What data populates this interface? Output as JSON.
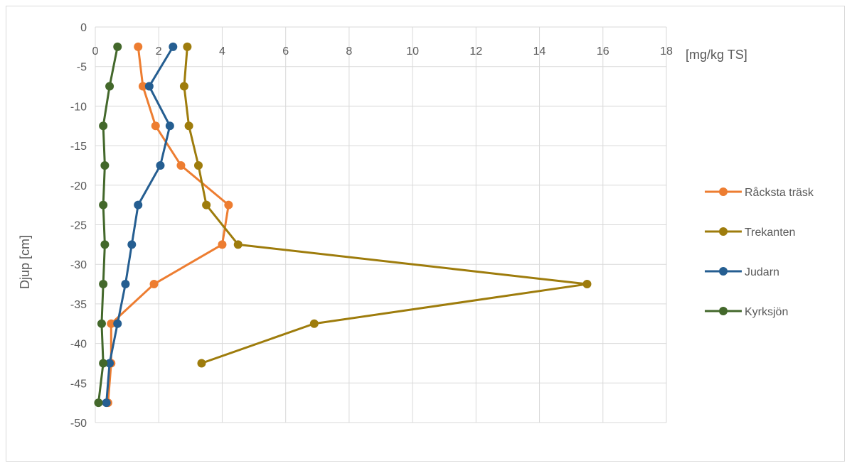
{
  "chart_data": {
    "type": "line",
    "title": "",
    "xlabel": "[mg/kg TS]",
    "ylabel": "Djup [cm]",
    "xlim": [
      0,
      18
    ],
    "ylim": [
      -50,
      0
    ],
    "x_ticks": [
      0,
      2,
      4,
      6,
      8,
      10,
      12,
      14,
      16,
      18
    ],
    "y_ticks": [
      0,
      -5,
      -10,
      -15,
      -20,
      -25,
      -30,
      -35,
      -40,
      -45,
      -50
    ],
    "grid": true,
    "x_axis_position": "top",
    "legend_position": "right",
    "depths": [
      -2.5,
      -7.5,
      -12.5,
      -17.5,
      -22.5,
      -27.5,
      -32.5,
      -37.5,
      -42.5,
      -47.5
    ],
    "series": [
      {
        "name": "Råcksta träsk",
        "color": "#ED7D31",
        "points": [
          [
            1.35,
            -2.5
          ],
          [
            1.5,
            -7.5
          ],
          [
            1.9,
            -12.5
          ],
          [
            2.7,
            -17.5
          ],
          [
            4.2,
            -22.5
          ],
          [
            4.0,
            -27.5
          ],
          [
            1.85,
            -32.5
          ],
          [
            0.5,
            -37.5
          ],
          [
            0.5,
            -42.5
          ],
          [
            0.4,
            -47.5
          ]
        ]
      },
      {
        "name": "Trekanten",
        "color": "#9E7C0C",
        "points": [
          [
            2.9,
            -2.5
          ],
          [
            2.8,
            -7.5
          ],
          [
            2.95,
            -12.5
          ],
          [
            3.25,
            -17.5
          ],
          [
            3.5,
            -22.5
          ],
          [
            4.5,
            -27.5
          ],
          [
            15.5,
            -32.5
          ],
          [
            6.9,
            -37.5
          ],
          [
            3.35,
            -42.5
          ]
        ]
      },
      {
        "name": "Judarn",
        "color": "#255E91",
        "points": [
          [
            2.45,
            -2.5
          ],
          [
            1.7,
            -7.5
          ],
          [
            2.35,
            -12.5
          ],
          [
            2.05,
            -17.5
          ],
          [
            1.35,
            -22.5
          ],
          [
            1.15,
            -27.5
          ],
          [
            0.95,
            -32.5
          ],
          [
            0.7,
            -37.5
          ],
          [
            0.45,
            -42.5
          ],
          [
            0.35,
            -47.5
          ]
        ]
      },
      {
        "name": "Kyrksjön",
        "color": "#43682B",
        "points": [
          [
            0.7,
            -2.5
          ],
          [
            0.45,
            -7.5
          ],
          [
            0.25,
            -12.5
          ],
          [
            0.3,
            -17.5
          ],
          [
            0.25,
            -22.5
          ],
          [
            0.3,
            -27.5
          ],
          [
            0.25,
            -32.5
          ],
          [
            0.2,
            -37.5
          ],
          [
            0.25,
            -42.5
          ],
          [
            0.1,
            -47.5
          ]
        ]
      }
    ]
  }
}
